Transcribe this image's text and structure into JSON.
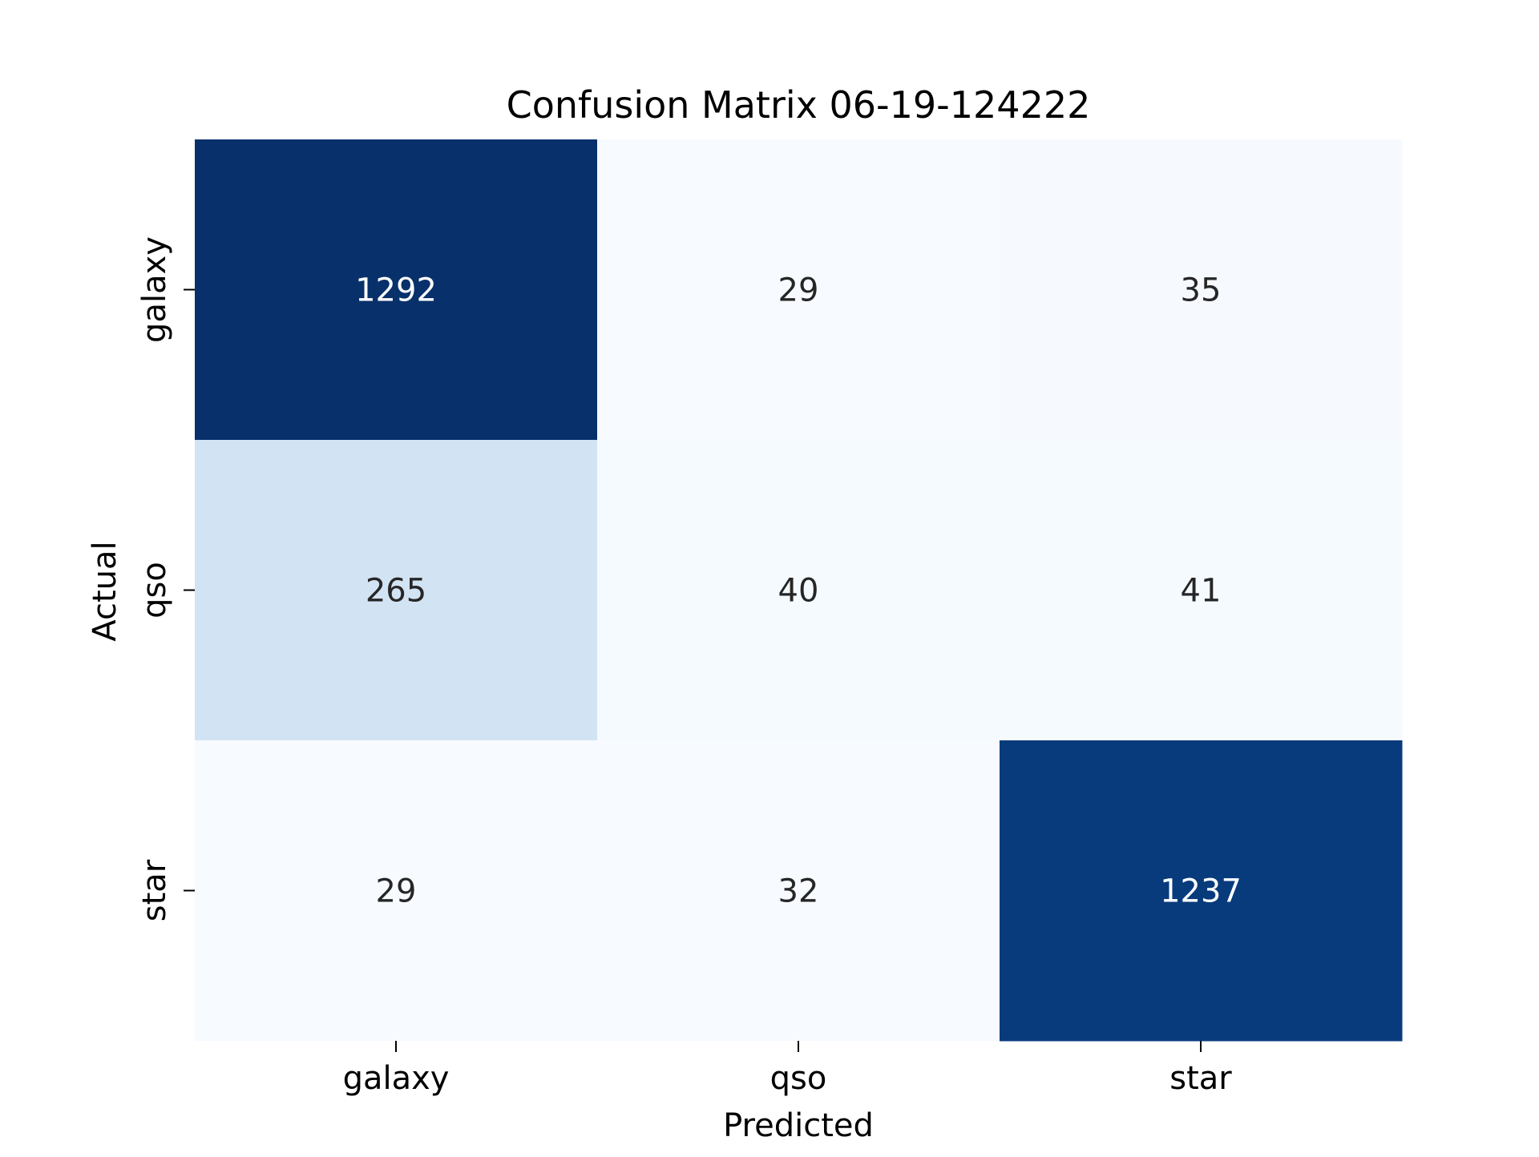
{
  "chart_data": {
    "type": "heatmap",
    "title": "Confusion Matrix 06-19-124222",
    "xlabel": "Predicted",
    "ylabel": "Actual",
    "x_categories": [
      "galaxy",
      "qso",
      "star"
    ],
    "y_categories": [
      "galaxy",
      "qso",
      "star"
    ],
    "values": [
      [
        1292,
        29,
        35
      ],
      [
        265,
        40,
        41
      ],
      [
        29,
        32,
        1237
      ]
    ],
    "colormap": "Blues",
    "colorbar": false,
    "color_low": "#f7fbff",
    "color_high": "#08306b",
    "text_dark": "#262626",
    "text_light": "#ffffff"
  }
}
